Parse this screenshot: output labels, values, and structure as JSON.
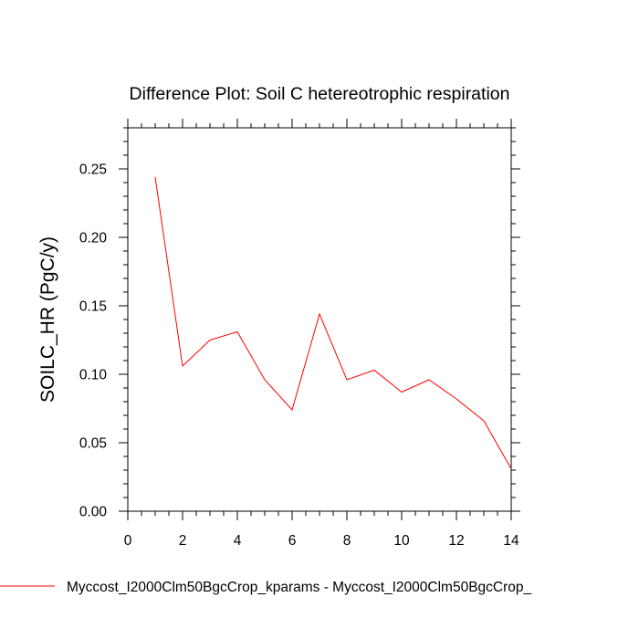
{
  "chart_data": {
    "type": "line",
    "title": "Difference Plot: Soil C hetereotrophic respiration",
    "xlabel": "",
    "ylabel": "SOILC_HR  (PgC/y)",
    "xlim": [
      0,
      14
    ],
    "ylim": [
      0,
      0.28
    ],
    "xticks": [
      0,
      2,
      4,
      6,
      8,
      10,
      12,
      14
    ],
    "xtick_labels": [
      "0",
      "2",
      "4",
      "6",
      "8",
      "10",
      "12",
      "14"
    ],
    "yticks": [
      0,
      0.05,
      0.1,
      0.15,
      0.2,
      0.25
    ],
    "ytick_labels": [
      "0.00",
      "0.05",
      "0.10",
      "0.15",
      "0.20",
      "0.25"
    ],
    "grid": false,
    "legend_position": "bottom",
    "series": [
      {
        "name": "Myccost_I2000Clm50BgcCrop_kparams - Myccost_I2000Clm50BgcCrop_",
        "color": "#ff0000",
        "x": [
          1,
          2,
          3,
          4,
          5,
          6,
          7,
          8,
          9,
          10,
          11,
          12,
          13,
          14
        ],
        "y": [
          0.244,
          0.106,
          0.125,
          0.131,
          0.096,
          0.074,
          0.144,
          0.096,
          0.103,
          0.087,
          0.096,
          0.082,
          0.066,
          0.031
        ]
      }
    ]
  }
}
